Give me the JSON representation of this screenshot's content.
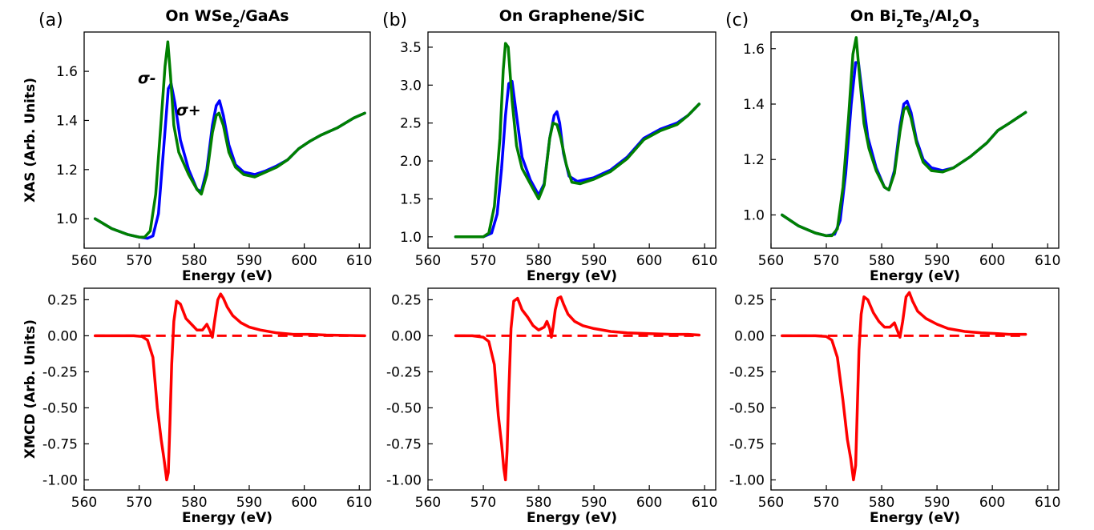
{
  "colors": {
    "sigma_plus": "#0000ff",
    "sigma_minus": "#008000",
    "xmcd": "#ff0000"
  },
  "chart_data": [
    {
      "panel": "(a)",
      "title_html": "On WSe<tspan baseline-shift='sub' font-size='13px'>2</tspan>/GaAs",
      "title_text": "On WSe2/GaAs",
      "type": "line",
      "row": "XAS",
      "xlabel": "Energy (eV)",
      "ylabel": "XAS (Arb. Units)",
      "xlim": [
        560,
        612
      ],
      "ylim": [
        0.88,
        1.76
      ],
      "xticks": [
        "560",
        "570",
        "580",
        "590",
        "600",
        "610"
      ],
      "yticks": [
        "1.0",
        "1.2",
        "1.4",
        "1.6"
      ],
      "annotations": [
        {
          "text": "σ-",
          "color": "#008000"
        },
        {
          "text": "σ+",
          "color": "#0000ff"
        }
      ],
      "series": [
        {
          "name": "σ+",
          "color": "#0000ff",
          "x": [
            562,
            565,
            568,
            570,
            571.5,
            572.5,
            573.5,
            574.5,
            575.3,
            575.8,
            576.5,
            577.5,
            579,
            580.5,
            581.3,
            582.3,
            583.3,
            584,
            584.6,
            585.3,
            586.3,
            587.5,
            589,
            591,
            593,
            595,
            597,
            599,
            601,
            603,
            606,
            609,
            611
          ],
          "y": [
            1.0,
            0.96,
            0.935,
            0.925,
            0.92,
            0.93,
            1.02,
            1.3,
            1.53,
            1.55,
            1.47,
            1.32,
            1.2,
            1.12,
            1.11,
            1.2,
            1.38,
            1.46,
            1.48,
            1.42,
            1.3,
            1.22,
            1.19,
            1.18,
            1.195,
            1.215,
            1.24,
            1.285,
            1.315,
            1.34,
            1.37,
            1.41,
            1.43
          ]
        },
        {
          "name": "σ-",
          "color": "#008000",
          "x": [
            562,
            565,
            568,
            570,
            571,
            572,
            573,
            574,
            574.7,
            575.2,
            575.7,
            576.3,
            577.2,
            579,
            580.5,
            581.3,
            582.3,
            583.3,
            584,
            584.5,
            585.3,
            586.3,
            587.5,
            589,
            591,
            593,
            595,
            597,
            599,
            601,
            603,
            606,
            609,
            611
          ],
          "y": [
            1.0,
            0.96,
            0.935,
            0.925,
            0.925,
            0.95,
            1.1,
            1.4,
            1.62,
            1.72,
            1.58,
            1.38,
            1.27,
            1.18,
            1.12,
            1.1,
            1.18,
            1.35,
            1.42,
            1.43,
            1.38,
            1.27,
            1.21,
            1.18,
            1.17,
            1.19,
            1.21,
            1.24,
            1.285,
            1.315,
            1.34,
            1.37,
            1.41,
            1.43
          ]
        }
      ]
    },
    {
      "panel": "(b)",
      "title_html": "On Graphene/SiC",
      "title_text": "On Graphene/SiC",
      "type": "line",
      "row": "XAS",
      "xlabel": "Energy (eV)",
      "ylabel": "",
      "xlim": [
        560,
        612
      ],
      "ylim": [
        0.85,
        3.7
      ],
      "xticks": [
        "560",
        "570",
        "580",
        "590",
        "600",
        "610"
      ],
      "yticks": [
        "1.0",
        "1.5",
        "2.0",
        "2.5",
        "3.0",
        "3.5"
      ],
      "series": [
        {
          "name": "σ+",
          "color": "#0000ff",
          "x": [
            565,
            568,
            570,
            571.5,
            572.5,
            573.3,
            574,
            574.6,
            575.2,
            576,
            577,
            578.5,
            580,
            581,
            582,
            582.8,
            583.3,
            583.8,
            584.5,
            585.5,
            587,
            590,
            593,
            596,
            599,
            602,
            605,
            607,
            609
          ],
          "y": [
            1.0,
            1.0,
            1.0,
            1.05,
            1.3,
            1.9,
            2.6,
            3.02,
            3.05,
            2.6,
            2.05,
            1.75,
            1.55,
            1.7,
            2.3,
            2.6,
            2.65,
            2.5,
            2.1,
            1.8,
            1.73,
            1.78,
            1.88,
            2.05,
            2.3,
            2.42,
            2.5,
            2.6,
            2.75
          ]
        },
        {
          "name": "σ-",
          "color": "#008000",
          "x": [
            565,
            568,
            570,
            571,
            572,
            573,
            573.6,
            574,
            574.5,
            575.2,
            576,
            577,
            578.5,
            580,
            581,
            582,
            582.6,
            583.3,
            584,
            585,
            586,
            587.5,
            590,
            593,
            596,
            599,
            602,
            605,
            607,
            609
          ],
          "y": [
            1.0,
            1.0,
            1.0,
            1.05,
            1.4,
            2.3,
            3.2,
            3.55,
            3.5,
            2.8,
            2.2,
            1.9,
            1.7,
            1.5,
            1.68,
            2.3,
            2.5,
            2.48,
            2.3,
            1.95,
            1.72,
            1.7,
            1.76,
            1.86,
            2.03,
            2.28,
            2.4,
            2.48,
            2.6,
            2.75
          ]
        }
      ]
    },
    {
      "panel": "(c)",
      "title_html": "On Bi<tspan baseline-shift='sub' font-size='13px'>2</tspan>Te<tspan baseline-shift='sub' font-size='13px'>3</tspan>/Al<tspan baseline-shift='sub' font-size='13px'>2</tspan>O<tspan baseline-shift='sub' font-size='13px'>3</tspan>",
      "title_text": "On Bi2Te3/Al2O3",
      "type": "line",
      "row": "XAS",
      "xlabel": "Energy (eV)",
      "ylabel": "",
      "xlim": [
        560,
        612
      ],
      "ylim": [
        0.88,
        1.66
      ],
      "xticks": [
        "560",
        "570",
        "580",
        "590",
        "600",
        "610"
      ],
      "yticks": [
        "1.0",
        "1.2",
        "1.4",
        "1.6"
      ],
      "series": [
        {
          "name": "σ+",
          "color": "#0000ff",
          "x": [
            562,
            565,
            568,
            570,
            571.5,
            572.5,
            573.5,
            574.5,
            575.3,
            575.8,
            576.6,
            577.5,
            579,
            580.5,
            581.3,
            582.3,
            583.3,
            584,
            584.6,
            585.3,
            586.3,
            587.5,
            589,
            591,
            593,
            596,
            599,
            601,
            603,
            606
          ],
          "y": [
            1.0,
            0.96,
            0.935,
            0.925,
            0.93,
            0.98,
            1.15,
            1.4,
            1.55,
            1.55,
            1.42,
            1.28,
            1.17,
            1.1,
            1.09,
            1.16,
            1.32,
            1.4,
            1.41,
            1.37,
            1.27,
            1.2,
            1.17,
            1.16,
            1.17,
            1.21,
            1.26,
            1.305,
            1.33,
            1.37
          ]
        },
        {
          "name": "σ-",
          "color": "#008000",
          "x": [
            562,
            565,
            568,
            570,
            571,
            572,
            573,
            574,
            574.8,
            575.4,
            576,
            576.8,
            577.7,
            579,
            580.5,
            581.3,
            582.3,
            583.3,
            584,
            584.6,
            585.3,
            586.3,
            587.5,
            589,
            591,
            593,
            596,
            599,
            601,
            603,
            606
          ],
          "y": [
            1.0,
            0.96,
            0.935,
            0.925,
            0.925,
            0.95,
            1.1,
            1.35,
            1.58,
            1.64,
            1.5,
            1.33,
            1.24,
            1.16,
            1.1,
            1.09,
            1.15,
            1.3,
            1.38,
            1.39,
            1.35,
            1.26,
            1.19,
            1.16,
            1.155,
            1.17,
            1.21,
            1.26,
            1.305,
            1.33,
            1.37
          ]
        }
      ]
    },
    {
      "panel": "(a)",
      "type": "line",
      "row": "XMCD",
      "xlabel": "Energy (eV)",
      "ylabel": "XMCD (Arb. Units)",
      "xlim": [
        560,
        612
      ],
      "ylim": [
        -1.07,
        0.33
      ],
      "xticks": [
        "560",
        "570",
        "580",
        "590",
        "600",
        "610"
      ],
      "yticks": [
        "0.25",
        "0.00",
        "-0.25",
        "-0.50",
        "-0.75",
        "-1.00"
      ],
      "baseline": {
        "y": 0,
        "x": [
          562,
          611
        ],
        "style": "dashed"
      },
      "series": [
        {
          "name": "XMCD",
          "color": "#ff0000",
          "x": [
            562,
            566,
            569,
            570.5,
            571.5,
            572.5,
            573.3,
            574,
            574.5,
            575,
            575.3,
            575.6,
            575.9,
            576.3,
            576.8,
            577.5,
            578.5,
            579.5,
            580.5,
            581.5,
            582.3,
            582.8,
            583.3,
            583.7,
            584.3,
            584.8,
            585.3,
            586,
            587,
            588.5,
            590,
            592,
            595,
            598,
            601,
            604,
            607,
            611
          ],
          "y": [
            0,
            0,
            0,
            -0.005,
            -0.03,
            -0.15,
            -0.5,
            -0.72,
            -0.85,
            -1.0,
            -0.95,
            -0.6,
            -0.2,
            0.1,
            0.24,
            0.22,
            0.12,
            0.08,
            0.04,
            0.04,
            0.08,
            0.04,
            -0.01,
            0.1,
            0.25,
            0.29,
            0.26,
            0.2,
            0.14,
            0.09,
            0.06,
            0.04,
            0.02,
            0.01,
            0.01,
            0.005,
            0.003,
            0
          ]
        }
      ]
    },
    {
      "panel": "(b)",
      "type": "line",
      "row": "XMCD",
      "xlabel": "Energy (eV)",
      "ylabel": "",
      "xlim": [
        560,
        612
      ],
      "ylim": [
        -1.07,
        0.33
      ],
      "xticks": [
        "560",
        "570",
        "580",
        "590",
        "600",
        "610"
      ],
      "yticks": [
        "0.25",
        "0.00",
        "-0.25",
        "-0.50",
        "-0.75",
        "-1.00"
      ],
      "baseline": {
        "y": 0,
        "x": [
          565,
          609
        ],
        "style": "dashed"
      },
      "series": [
        {
          "name": "XMCD",
          "color": "#ff0000",
          "x": [
            565,
            568,
            570,
            571,
            572,
            572.7,
            573.3,
            573.7,
            574,
            574.3,
            574.6,
            575,
            575.5,
            576.2,
            577,
            578,
            579,
            580,
            581,
            581.5,
            582,
            582.3,
            582.6,
            583,
            583.5,
            584,
            584.5,
            585.3,
            586.5,
            588,
            590,
            593,
            596,
            600,
            604,
            607,
            609
          ],
          "y": [
            0,
            0,
            -0.01,
            -0.04,
            -0.2,
            -0.55,
            -0.75,
            -0.92,
            -1.0,
            -0.8,
            -0.4,
            0.05,
            0.24,
            0.26,
            0.18,
            0.13,
            0.07,
            0.04,
            0.06,
            0.1,
            0.05,
            -0.01,
            0.06,
            0.18,
            0.26,
            0.27,
            0.22,
            0.15,
            0.1,
            0.07,
            0.05,
            0.03,
            0.02,
            0.015,
            0.01,
            0.01,
            0.005
          ]
        }
      ]
    },
    {
      "panel": "(c)",
      "type": "line",
      "row": "XMCD",
      "xlabel": "Energy (eV)",
      "ylabel": "",
      "xlim": [
        560,
        612
      ],
      "ylim": [
        -1.07,
        0.33
      ],
      "xticks": [
        "560",
        "570",
        "580",
        "590",
        "600",
        "610"
      ],
      "yticks": [
        "0.25",
        "0.00",
        "-0.25",
        "-0.50",
        "-0.75",
        "-1.00"
      ],
      "baseline": {
        "y": 0,
        "x": [
          562,
          606
        ],
        "style": "dashed"
      },
      "series": [
        {
          "name": "XMCD",
          "color": "#ff0000",
          "x": [
            562,
            565,
            568,
            570,
            571,
            572,
            573,
            573.8,
            574.4,
            574.9,
            575.3,
            575.6,
            575.9,
            576.3,
            576.8,
            577.5,
            578.5,
            579.5,
            580.5,
            581.5,
            582.3,
            582.8,
            583.3,
            583.8,
            584.4,
            585,
            585.6,
            586.5,
            588,
            590,
            592,
            595,
            598,
            601,
            603,
            606
          ],
          "y": [
            0,
            0,
            0,
            -0.005,
            -0.03,
            -0.15,
            -0.45,
            -0.72,
            -0.85,
            -1.0,
            -0.9,
            -0.5,
            -0.1,
            0.15,
            0.27,
            0.25,
            0.16,
            0.1,
            0.06,
            0.06,
            0.09,
            0.04,
            -0.01,
            0.1,
            0.27,
            0.3,
            0.24,
            0.17,
            0.12,
            0.08,
            0.05,
            0.03,
            0.02,
            0.015,
            0.01,
            0.01
          ]
        }
      ]
    }
  ]
}
